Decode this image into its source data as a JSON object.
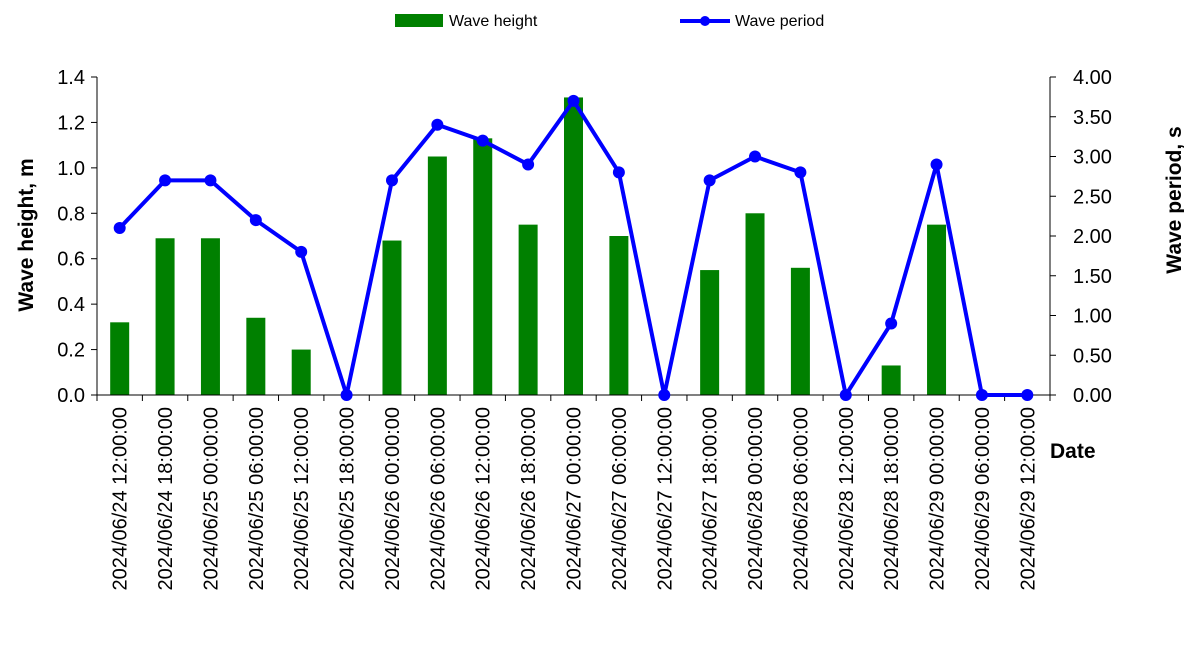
{
  "chart_data": {
    "type": "bar",
    "categories": [
      "2024/06/24 12:00:00",
      "2024/06/24 18:00:00",
      "2024/06/25 00:00:00",
      "2024/06/25 06:00:00",
      "2024/06/25 12:00:00",
      "2024/06/25 18:00:00",
      "2024/06/26 00:00:00",
      "2024/06/26 06:00:00",
      "2024/06/26 12:00:00",
      "2024/06/26 18:00:00",
      "2024/06/27 00:00:00",
      "2024/06/27 06:00:00",
      "2024/06/27 12:00:00",
      "2024/06/27 18:00:00",
      "2024/06/28 00:00:00",
      "2024/06/28 06:00:00",
      "2024/06/28 12:00:00",
      "2024/06/28 18:00:00",
      "2024/06/29 00:00:00",
      "2024/06/29 06:00:00",
      "2024/06/29 12:00:00"
    ],
    "series": [
      {
        "name": "Wave height",
        "type": "bar",
        "axis": "left",
        "color": "#008000",
        "values": [
          0.32,
          0.69,
          0.69,
          0.34,
          0.2,
          0.0,
          0.68,
          1.05,
          1.13,
          0.75,
          1.31,
          0.7,
          0.0,
          0.55,
          0.8,
          0.56,
          0.0,
          0.13,
          0.75,
          0.0,
          0.0
        ]
      },
      {
        "name": "Wave period",
        "type": "line",
        "axis": "right",
        "color": "#0000ff",
        "values": [
          2.1,
          2.7,
          2.7,
          2.2,
          1.8,
          0.0,
          2.7,
          3.4,
          3.2,
          2.9,
          3.7,
          2.8,
          0.0,
          2.7,
          3.0,
          2.8,
          0.0,
          0.9,
          2.9,
          0.0,
          0.0
        ]
      }
    ],
    "xlabel": "Date",
    "ylabel": "Wave height, m",
    "y2label": "Wave period, s",
    "ylim": [
      0,
      1.4
    ],
    "y2lim": [
      0,
      4.0
    ],
    "yticks": [
      "0.0",
      "0.2",
      "0.4",
      "0.6",
      "0.8",
      "1.0",
      "1.2",
      "1.4"
    ],
    "y2ticks": [
      "0.00",
      "0.50",
      "1.00",
      "1.50",
      "2.00",
      "2.50",
      "3.00",
      "3.50",
      "4.00"
    ],
    "grid": false,
    "legend_position": "top"
  }
}
